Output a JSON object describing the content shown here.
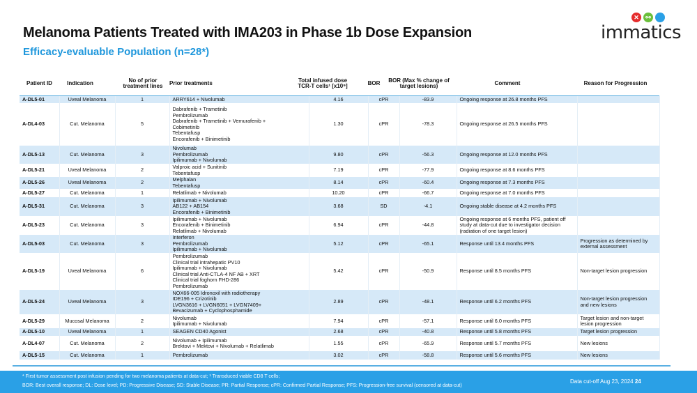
{
  "header": {
    "title": "Melanoma Patients Treated with IMA203 in Phase 1b Dose Expansion",
    "subtitle": "Efficacy-evaluable Population (n=28*)",
    "logo_text": "immatics"
  },
  "table": {
    "columns": [
      "Patient ID",
      "Indication",
      "No of prior treatment lines",
      "Prior treatments",
      "Total infused dose TCR-T cells¹ [x10⁹]",
      "BOR",
      "BOR (Max % change of target lesions)",
      "Comment",
      "Reason for Progression"
    ],
    "rows": [
      {
        "id": "A-DL5-01",
        "indication": "Uveal Melanoma",
        "lines": "1",
        "treatments": [
          "ARRY614 + Nivolumab"
        ],
        "dose": "4.16",
        "bor": "cPR",
        "change": "-83.9",
        "comment": "Ongoing response at 26.8 months PFS",
        "reason": ""
      },
      {
        "id": "A-DL4-03",
        "indication": "Cut. Melanoma",
        "lines": "5",
        "treatments": [
          "Dabrafenib + Trametinib",
          "Pembrolizumab",
          "Dabrafenib + Trametinib + Vemurafenib +",
          "Cobimetinib",
          "Tebentafusp",
          "Encorafenib + Binimetinib"
        ],
        "dose": "1.30",
        "bor": "cPR",
        "change": "-78.3",
        "comment": "Ongoing response at 26.5 months PFS",
        "reason": ""
      },
      {
        "id": "A-DL5-13",
        "indication": "Cut. Melanoma",
        "lines": "3",
        "treatments": [
          "Nivolumab",
          "Pembrolizumab",
          "Ipilimumab + Nivolumab"
        ],
        "dose": "9.80",
        "bor": "cPR",
        "change": "-56.3",
        "comment": "Ongoing response at 12.0 months PFS",
        "reason": ""
      },
      {
        "id": "A-DL5-21",
        "indication": "Uveal Melanoma",
        "lines": "2",
        "treatments": [
          "Valproic acid + Sunitinib",
          "Tebentafusp"
        ],
        "dose": "7.19",
        "bor": "cPR",
        "change": "-77.9",
        "comment": "Ongoing response at 8.6 months PFS",
        "reason": ""
      },
      {
        "id": "A-DL5-26",
        "indication": "Uveal Melanoma",
        "lines": "2",
        "treatments": [
          "Melphalan",
          "Tebentafusp"
        ],
        "dose": "8.14",
        "bor": "cPR",
        "change": "-60.4",
        "comment": "Ongoing response at 7.3 months PFS",
        "reason": ""
      },
      {
        "id": "A-DL5-27",
        "indication": "Cut. Melanoma",
        "lines": "1",
        "treatments": [
          "Relatlimab + Nivolumab"
        ],
        "dose": "10.20",
        "bor": "cPR",
        "change": "-66.7",
        "comment": "Ongoing response at 7.0 months PFS",
        "reason": ""
      },
      {
        "id": "A-DL5-31",
        "indication": "Cut. Melanoma",
        "lines": "3",
        "treatments": [
          "Ipilimumab + Nivolumab",
          "AB122 + AB154",
          "Encorafenib + Binimetinib"
        ],
        "dose": "3.68",
        "bor": "SD",
        "change": "-4.1",
        "comment": "Ongoing stable disease at 4.2 months PFS",
        "reason": ""
      },
      {
        "id": "A-DL5-23",
        "indication": "Cut. Melanoma",
        "lines": "3",
        "treatments": [
          "Ipilimumab + Nivolumab",
          "Encorafenib + Binimetinib",
          "Relatlimab + Nivolumab"
        ],
        "dose": "6.94",
        "bor": "cPR",
        "change": "-44.8",
        "comment": "Ongoing response at 6 months PFS, patient off study at data-cut due to investigator decision (radiation of one target lesion)",
        "reason": ""
      },
      {
        "id": "A-DL5-03",
        "indication": "Cut. Melanoma",
        "lines": "3",
        "treatments": [
          "Interferon",
          "Pembrolizumab",
          "Ipilimumab + Nivolumab"
        ],
        "dose": "5.12",
        "bor": "cPR",
        "change": "-65.1",
        "comment": "Response until 13.4 months PFS",
        "reason": "Progression as determined by external assessment"
      },
      {
        "id": "A-DL5-19",
        "indication": "Uveal Melanoma",
        "lines": "6",
        "treatments": [
          "Pembrolizumab",
          "Clinical trial intrahepatic PV10",
          "Ipilimumab + Nivolumab",
          "Clinical trial Anti-CTLA-4 NF AB + XRT",
          "Clinical trial foghorn FHD-286",
          "Pembrolizumab"
        ],
        "dose": "5.42",
        "bor": "cPR",
        "change": "-50.9",
        "comment": "Response until 8.5 months PFS",
        "reason": "Non-target lesion progression"
      },
      {
        "id": "A-DL5-24",
        "indication": "Uveal Melanoma",
        "lines": "3",
        "treatments": [
          "NOX66-005 Idronoxil with radiotherapy",
          "IDE196 + Crizotinib",
          "LVGN3616 + LVGN6051 + LVGN7409+",
          "Bevacizumab + Cyclophosphamide"
        ],
        "dose": "2.89",
        "bor": "cPR",
        "change": "-48.1",
        "comment": "Response until 6.2 months PFS",
        "reason": "Non-target lesion progression and new lesions"
      },
      {
        "id": "A-DL5-29",
        "indication": "Mucosal Melanoma",
        "lines": "2",
        "treatments": [
          "Nivolumab",
          "Ipilimumab + Nivolumab"
        ],
        "dose": "7.94",
        "bor": "cPR",
        "change": "-57.1",
        "comment": "Response until 6.0 months PFS",
        "reason": "Target lesion and non-target lesion progression"
      },
      {
        "id": "A-DL5-10",
        "indication": "Uveal Melanoma",
        "lines": "1",
        "treatments": [
          "SEAGEN CD40 Agonist"
        ],
        "dose": "2.68",
        "bor": "cPR",
        "change": "-40.8",
        "comment": "Response until 5.8 months PFS",
        "reason": "Target lesion progression"
      },
      {
        "id": "A-DL4-07",
        "indication": "Cut. Melanoma",
        "lines": "2",
        "treatments": [
          "Nivolumab + Ipilimumab",
          "Brektovi + Mektovi + Nivolumab + Relatlimab"
        ],
        "dose": "1.55",
        "bor": "cPR",
        "change": "-65.9",
        "comment": "Response until 5.7 months PFS",
        "reason": "New lesions"
      },
      {
        "id": "A-DL5-15",
        "indication": "Cut. Melanoma",
        "lines": "1",
        "treatments": [
          "Pembrolizumab"
        ],
        "dose": "3.02",
        "bor": "cPR",
        "change": "-58.8",
        "comment": "Response until 5.6 months PFS",
        "reason": "New lesions"
      }
    ]
  },
  "footer": {
    "note1": "* First tumor assessment post infusion pending for two melanoma patients at data-cut; ¹ Transduced viable CD8 T cells;",
    "note2": "BOR: Best overall response; DL: Dose level; PD: Progressive Disease; SD: Stable Disease; PR: Partial Response; cPR: Confirmed Partial Response; PFS: Progression-free survival (censored at  data-cut)",
    "cutoff": "Data cut-off Aug 23, 2024",
    "page": "24"
  },
  "colors": {
    "accent": "#1f97dc",
    "row_shade": "#d6e9f8",
    "footer": "#2aa0e6"
  }
}
